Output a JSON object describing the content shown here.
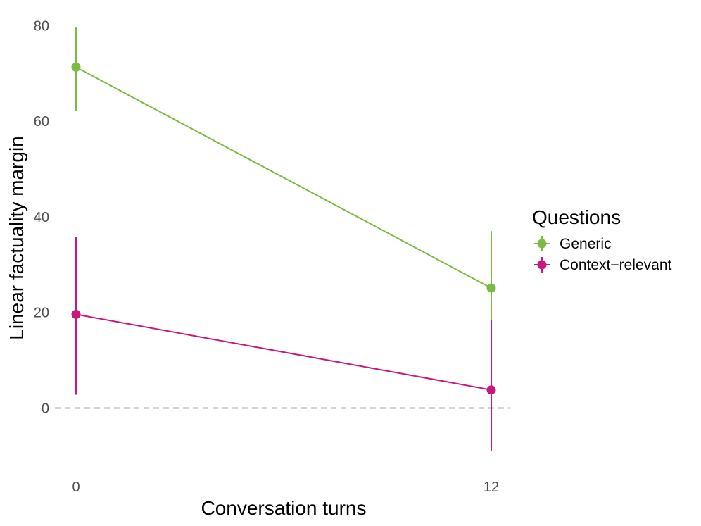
{
  "chart_data": {
    "type": "line",
    "title": "",
    "xlabel": "Conversation turns",
    "ylabel": "Linear factuality margin",
    "x": [
      0,
      12
    ],
    "x_ticks": [
      "0",
      "12"
    ],
    "y_ticks": [
      0,
      20,
      40,
      60,
      80
    ],
    "ylim": [
      -12,
      82
    ],
    "reference_line": {
      "y": 0,
      "style": "dashed",
      "color": "#8c8c8c"
    },
    "grid": false,
    "legend": {
      "title": "Questions",
      "position": "right"
    },
    "series": [
      {
        "name": "Generic",
        "color": "#7cbb42",
        "values": [
          71.3,
          25.1
        ],
        "lower": [
          62.2,
          16.8
        ],
        "upper": [
          79.6,
          37.0
        ]
      },
      {
        "name": "Context−relevant",
        "color": "#c8187d",
        "values": [
          19.6,
          3.8
        ],
        "lower": [
          2.8,
          -9.0
        ],
        "upper": [
          35.8,
          18.5
        ]
      }
    ]
  }
}
